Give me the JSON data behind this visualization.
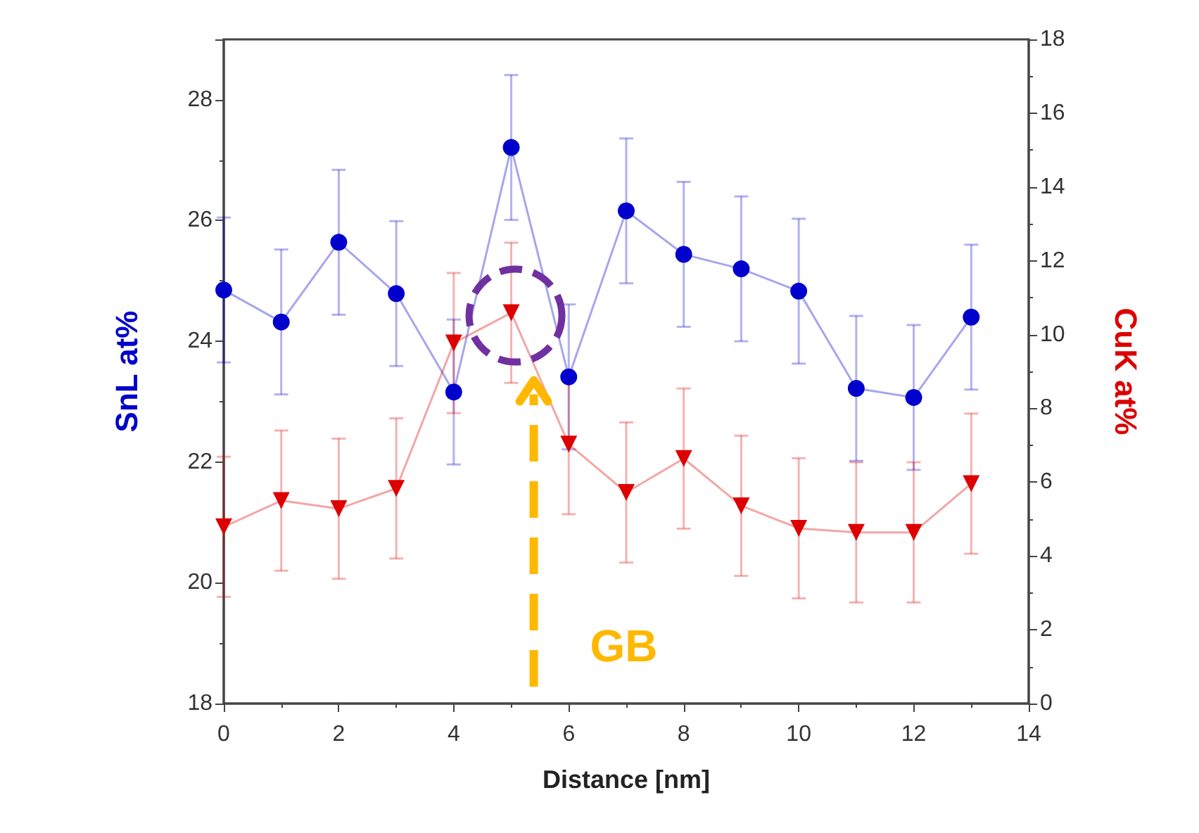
{
  "chart_data": {
    "type": "line",
    "xlabel": "Distance [nm]",
    "ylabel": "SnL at%",
    "y2label": "CuK at%",
    "x": [
      0,
      1,
      2,
      3,
      4,
      5,
      6,
      7,
      8,
      9,
      10,
      11,
      12,
      13
    ],
    "series": [
      {
        "color": "#0000cc",
        "marker": "circle",
        "values": [
          24.85,
          24.32,
          25.64,
          24.79,
          23.16,
          27.21,
          23.41,
          26.16,
          25.44,
          25.2,
          24.83,
          23.22,
          23.07,
          24.4
        ],
        "errors": [
          1.2,
          1.2,
          1.2,
          1.2,
          1.2,
          1.2,
          1.2,
          1.2,
          1.2,
          1.2,
          1.2,
          1.2,
          1.2,
          1.2
        ]
      },
      {
        "color": "#dd0000",
        "marker": "triangle",
        "axis": "y2",
        "values": [
          4.79,
          5.5,
          5.28,
          5.83,
          9.77,
          10.59,
          7.03,
          5.72,
          6.64,
          5.36,
          4.75,
          4.64,
          4.64,
          5.96
        ],
        "errors": [
          1.9,
          1.9,
          1.9,
          1.9,
          1.9,
          1.9,
          1.9,
          1.9,
          1.9,
          1.9,
          1.9,
          1.9,
          1.9,
          1.9
        ]
      }
    ],
    "xlim": [
      0,
      14
    ],
    "xticks": [
      0,
      2,
      4,
      6,
      8,
      10,
      12,
      14
    ],
    "ylim": [
      18,
      29
    ],
    "yticks": [
      18,
      20,
      22,
      24,
      26,
      28
    ],
    "y2lim": [
      0,
      18
    ],
    "y2ticks": [
      0,
      2,
      4,
      6,
      8,
      10,
      12,
      14,
      16,
      18
    ],
    "grid": false,
    "annotations": [
      "GB"
    ]
  }
}
